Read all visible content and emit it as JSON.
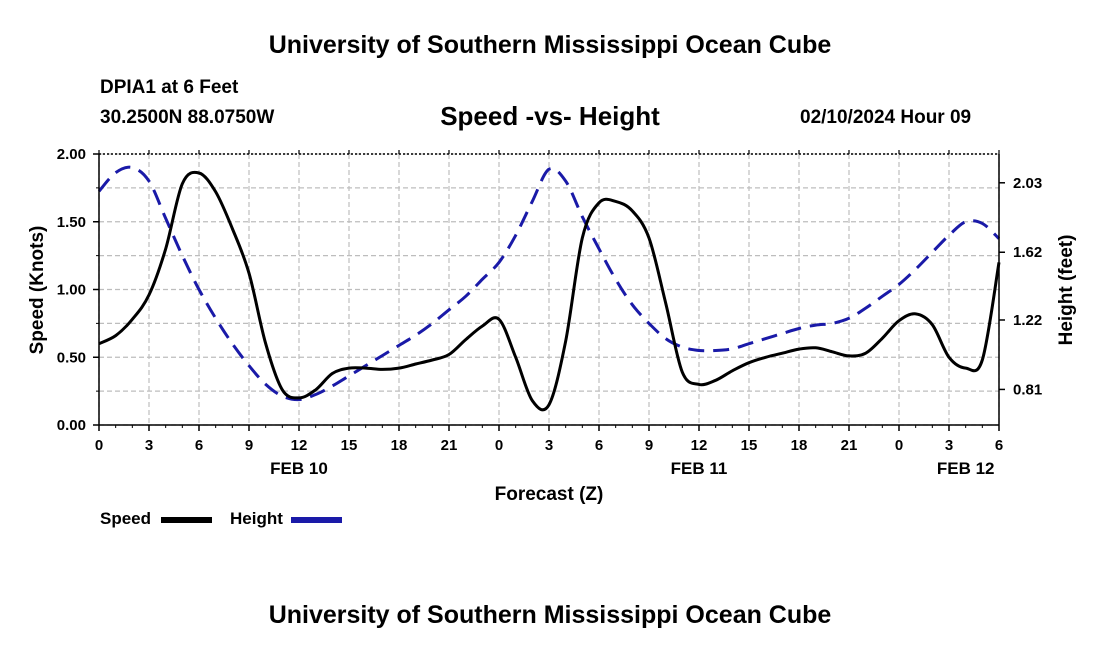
{
  "header": {
    "title": "University of Southern Mississippi Ocean Cube",
    "station": "DPIA1 at 6 Feet",
    "coords": "30.2500N  88.0750W",
    "chart_title": "Speed -vs- Height",
    "date": "02/10/2024 Hour 09"
  },
  "footer": {
    "title": "University of Southern Mississippi Ocean Cube"
  },
  "legend": {
    "speed_label": "Speed",
    "height_label": "Height"
  },
  "colors": {
    "speed": "#000000",
    "height": "#1a1aa8",
    "grid": "#bdbdbd"
  },
  "chart_data": {
    "type": "line",
    "title": "Speed -vs- Height",
    "xlabel": "Forecast (Z)",
    "ylabel": "Speed (Knots)",
    "y2label": "Height (feet)",
    "xlim": [
      0,
      54
    ],
    "ylim": [
      0,
      2
    ],
    "y2lim": [
      0.6,
      2.2
    ],
    "x_ticks": [
      0,
      3,
      6,
      9,
      12,
      15,
      18,
      21,
      24,
      27,
      30,
      33,
      36,
      39,
      42,
      45,
      48,
      51,
      54
    ],
    "x_tick_labels": [
      "0",
      "3",
      "6",
      "9",
      "12",
      "15",
      "18",
      "21",
      "0",
      "3",
      "6",
      "9",
      "12",
      "15",
      "18",
      "21",
      "0",
      "3",
      "6"
    ],
    "date_labels": [
      {
        "x": 12,
        "label": "FEB 10"
      },
      {
        "x": 36,
        "label": "FEB 11"
      },
      {
        "x": 52,
        "label": "FEB 12"
      }
    ],
    "y_ticks": [
      "0.00",
      "0.50",
      "1.00",
      "1.50",
      "2.00"
    ],
    "y_grid_step": 0.25,
    "y2_ticks": [
      "0.81",
      "1.22",
      "1.62",
      "2.03"
    ],
    "series": [
      {
        "name": "Speed",
        "axis": "left",
        "style": "solid",
        "x": [
          0,
          1,
          2,
          3,
          4,
          5,
          6,
          7,
          8,
          9,
          10,
          11,
          12,
          13,
          14,
          15,
          16,
          17,
          18,
          19,
          20,
          21,
          22,
          23,
          24,
          25,
          26,
          27,
          28,
          29,
          30,
          31,
          32,
          33,
          34,
          35,
          36,
          37,
          38,
          39,
          40,
          41,
          42,
          43,
          44,
          45,
          46,
          47,
          48,
          49,
          50,
          51,
          52,
          53,
          54
        ],
        "values": [
          0.6,
          0.66,
          0.78,
          0.96,
          1.3,
          1.78,
          1.86,
          1.72,
          1.45,
          1.12,
          0.6,
          0.26,
          0.2,
          0.26,
          0.38,
          0.42,
          0.42,
          0.41,
          0.42,
          0.45,
          0.48,
          0.52,
          0.63,
          0.73,
          0.78,
          0.5,
          0.18,
          0.15,
          0.62,
          1.38,
          1.64,
          1.65,
          1.58,
          1.38,
          0.9,
          0.39,
          0.3,
          0.33,
          0.4,
          0.46,
          0.5,
          0.53,
          0.56,
          0.57,
          0.54,
          0.51,
          0.53,
          0.64,
          0.77,
          0.82,
          0.74,
          0.5,
          0.42,
          0.48,
          1.2
        ]
      },
      {
        "name": "Height",
        "axis": "right",
        "style": "dashed",
        "x": [
          0,
          1,
          2,
          3,
          4,
          5,
          6,
          7,
          8,
          9,
          10,
          11,
          12,
          13,
          14,
          15,
          16,
          17,
          18,
          19,
          20,
          21,
          22,
          23,
          24,
          25,
          26,
          27,
          28,
          29,
          30,
          31,
          32,
          33,
          34,
          35,
          36,
          37,
          38,
          39,
          40,
          41,
          42,
          43,
          44,
          45,
          46,
          47,
          48,
          49,
          50,
          51,
          52,
          53,
          54
        ],
        "values": [
          1.98,
          2.09,
          2.12,
          2.04,
          1.82,
          1.6,
          1.4,
          1.23,
          1.08,
          0.95,
          0.84,
          0.77,
          0.75,
          0.78,
          0.83,
          0.89,
          0.95,
          1.01,
          1.07,
          1.13,
          1.2,
          1.28,
          1.36,
          1.46,
          1.56,
          1.72,
          1.92,
          2.11,
          2.04,
          1.83,
          1.64,
          1.46,
          1.31,
          1.2,
          1.11,
          1.06,
          1.04,
          1.04,
          1.05,
          1.08,
          1.11,
          1.14,
          1.17,
          1.19,
          1.2,
          1.23,
          1.29,
          1.36,
          1.43,
          1.52,
          1.62,
          1.72,
          1.8,
          1.79,
          1.7
        ]
      }
    ]
  }
}
